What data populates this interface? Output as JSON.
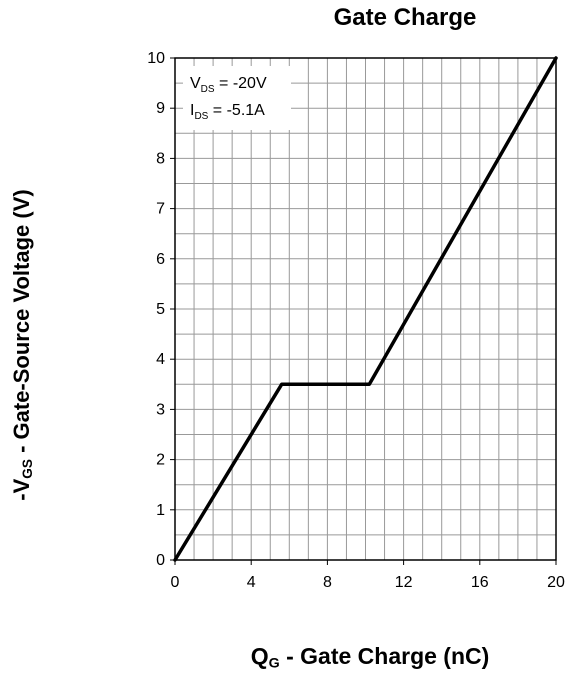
{
  "chart_data": {
    "type": "line",
    "title": "Gate Charge",
    "xlabel": {
      "main": "Q",
      "sub": "G",
      "rest": " - Gate Charge (nC)"
    },
    "ylabel": {
      "main": "-V",
      "sub": "GS",
      "rest": " - Gate-Source Voltage (V)"
    },
    "xlim": [
      0,
      20
    ],
    "ylim": [
      0,
      10
    ],
    "xticks": [
      0,
      4,
      8,
      12,
      16,
      20
    ],
    "yticks": [
      0,
      1,
      2,
      3,
      4,
      5,
      6,
      7,
      8,
      9,
      10
    ],
    "grid": true,
    "annotation": [
      {
        "main": "V",
        "sub": "DS",
        "rest": " = -20V"
      },
      {
        "main": "I",
        "sub": "DS",
        "rest": " = -5.1A"
      }
    ],
    "series": [
      {
        "values": [
          [
            0,
            0
          ],
          [
            5.6,
            3.5
          ],
          [
            10.2,
            3.5
          ],
          [
            20,
            10
          ]
        ]
      }
    ]
  }
}
